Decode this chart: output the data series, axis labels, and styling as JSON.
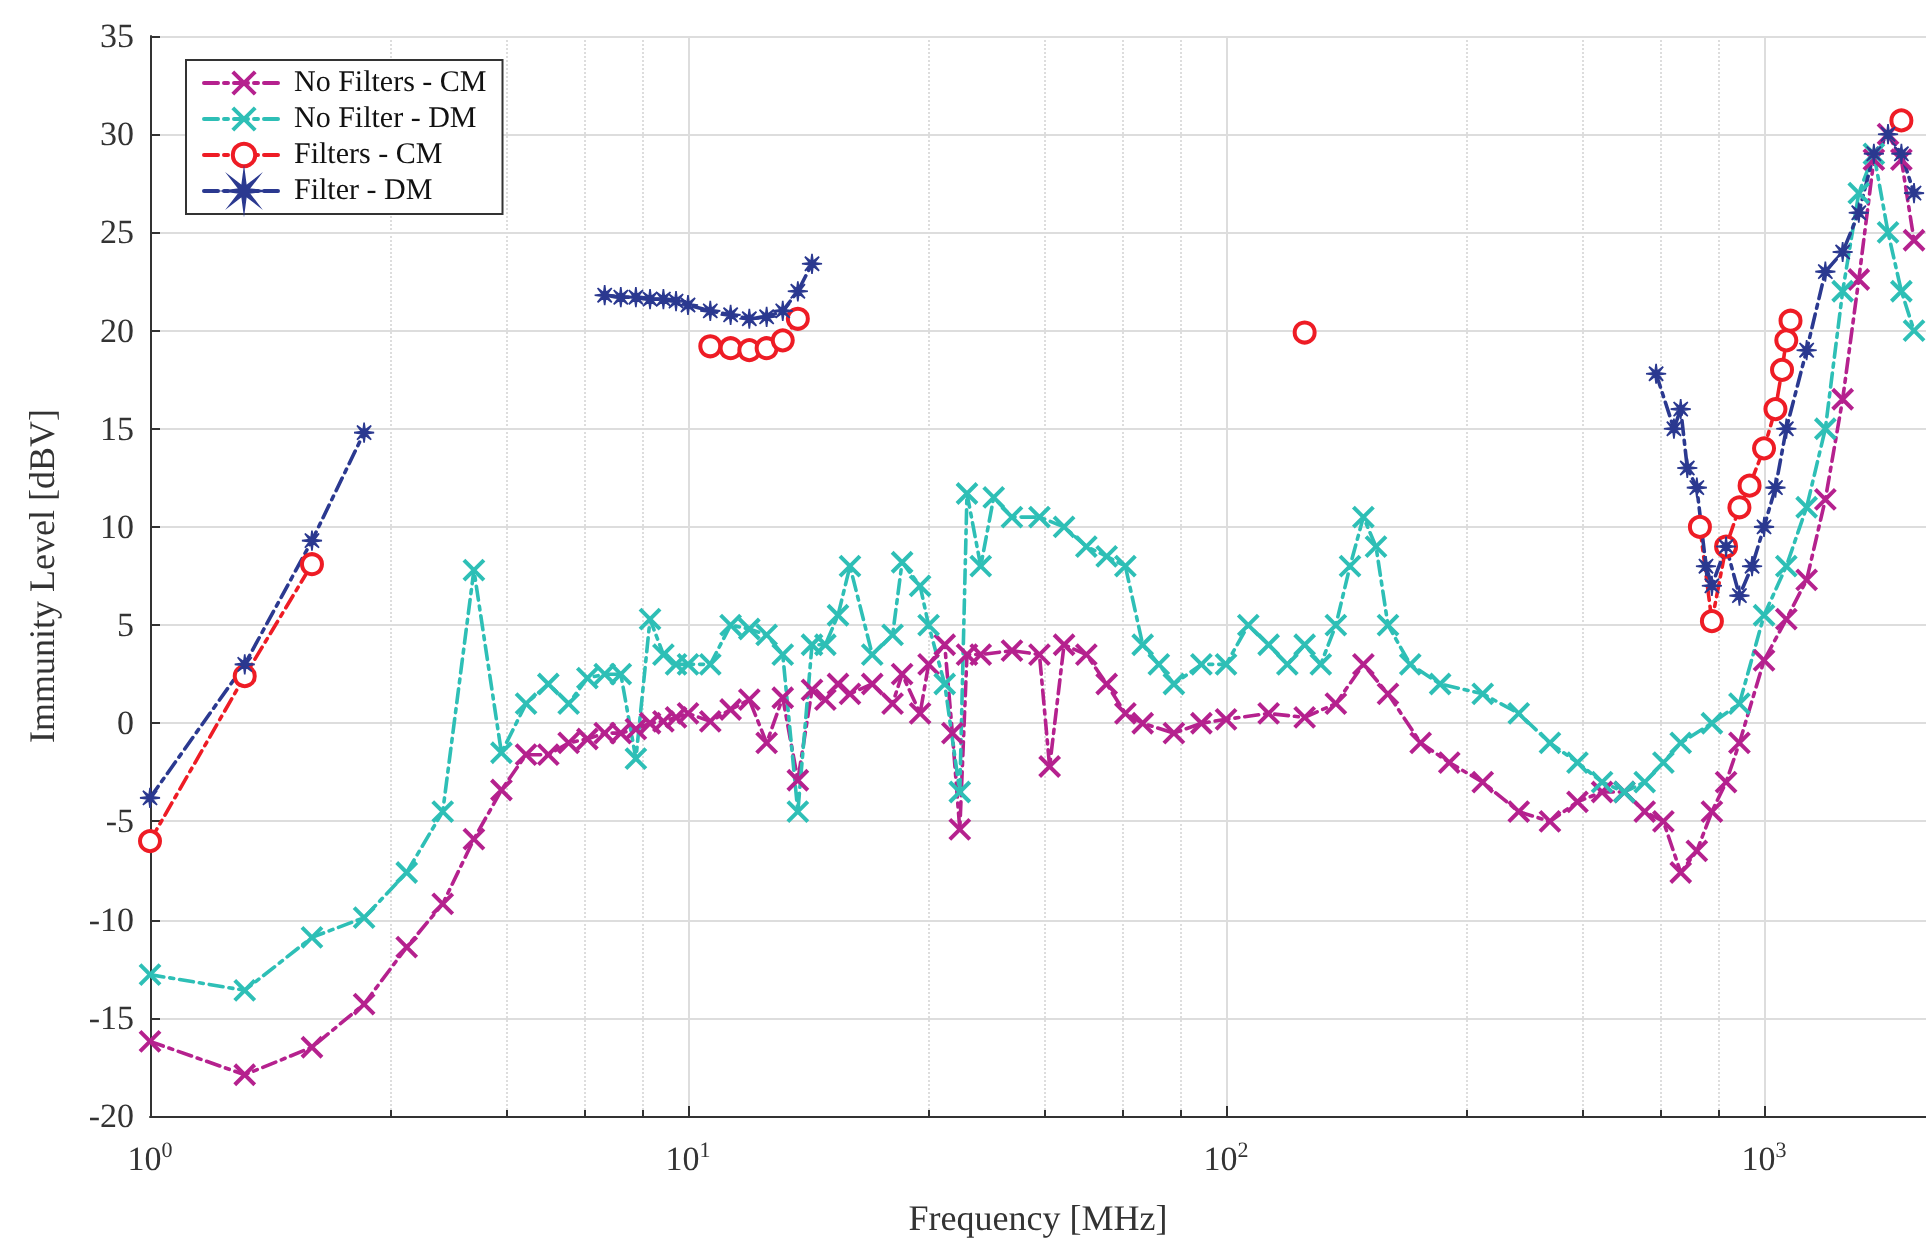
{
  "chart_data": {
    "type": "line",
    "xlabel": "Frequency [MHz]",
    "ylabel": "Immunity Level [dBV]",
    "log": "x",
    "xlim": [
      1,
      2000
    ],
    "xticks": [
      {
        "value": 1,
        "label": "10$^{0}$"
      },
      {
        "value": 10,
        "label": "10$^{1}$"
      },
      {
        "value": 100,
        "label": "10$^{2}$"
      },
      {
        "value": 1000,
        "label": "10$^{3}$"
      }
    ],
    "ylim": [
      -20,
      35
    ],
    "yticks": [
      -20,
      -15,
      -10,
      -5,
      0,
      5,
      10,
      15,
      20,
      25,
      30,
      35
    ],
    "grid": true,
    "legend": "top left",
    "line_style": "dashed",
    "series": [
      {
        "name": "No Filters - CM",
        "color": "#b5218e",
        "marker": "cross",
        "x": [
          1,
          1.5,
          2,
          2.5,
          3,
          3.5,
          4,
          4.5,
          5,
          5.5,
          6,
          6.5,
          7,
          7.5,
          8,
          8.5,
          9,
          9.5,
          10,
          11,
          12,
          13,
          14,
          15,
          16,
          17,
          18,
          19,
          20,
          22,
          24,
          25,
          27,
          28,
          30,
          31,
          32,
          33,
          35,
          40,
          45,
          47,
          50,
          55,
          60,
          65,
          70,
          80,
          90,
          100,
          120,
          140,
          160,
          180,
          200,
          230,
          260,
          300,
          350,
          400,
          450,
          500,
          550,
          600,
          650,
          700,
          750,
          800,
          850,
          900,
          1000,
          1100,
          1200,
          1300,
          1400,
          1500,
          1600,
          1700,
          1800,
          1900
        ],
        "values": [
          -16.2,
          -17.9,
          -16.5,
          -14.3,
          -11.4,
          -9.2,
          -5.9,
          -3.4,
          -1.6,
          -1.6,
          -1,
          -0.8,
          -0.5,
          -0.5,
          -0.3,
          0,
          0.1,
          0.3,
          0.5,
          0.1,
          0.7,
          1.2,
          -1,
          1.3,
          -2.9,
          1.7,
          1.2,
          2,
          1.5,
          2,
          1,
          2.5,
          0.5,
          3,
          4,
          -0.5,
          -5.4,
          3.5,
          3.5,
          3.7,
          3.5,
          -2.2,
          4,
          3.5,
          2,
          0.5,
          0,
          -0.5,
          0,
          0.2,
          0.5,
          0.3,
          1,
          3,
          1.5,
          -1,
          -2,
          -3,
          -4.5,
          -5,
          -4,
          -3.5,
          -3.5,
          -4.5,
          -5,
          -7.6,
          -6.5,
          -4.5,
          -3,
          -1,
          3.2,
          5.3,
          7.3,
          11.4,
          16.5,
          22.6,
          28.7,
          30,
          28.7,
          24.6
        ]
      },
      {
        "name": "No Filter - DM",
        "color": "#2ebfb6",
        "marker": "cross",
        "x": [
          1,
          1.5,
          2,
          2.5,
          3,
          3.5,
          4,
          4.5,
          5,
          5.5,
          6,
          6.5,
          7,
          7.5,
          8,
          8.5,
          9,
          9.5,
          10,
          11,
          12,
          13,
          14,
          15,
          16,
          17,
          18,
          19,
          20,
          22,
          24,
          25,
          27,
          28,
          30,
          32,
          33,
          35,
          37,
          40,
          45,
          50,
          55,
          60,
          65,
          70,
          75,
          80,
          90,
          100,
          110,
          120,
          130,
          140,
          150,
          160,
          170,
          180,
          190,
          200,
          220,
          250,
          300,
          350,
          400,
          450,
          500,
          550,
          600,
          650,
          700,
          800,
          900,
          1000,
          1100,
          1200,
          1300,
          1400,
          1500,
          1600,
          1700,
          1800,
          1900
        ],
        "values": [
          -12.8,
          -13.6,
          -10.9,
          -9.9,
          -7.6,
          -4.5,
          7.8,
          -1.5,
          1,
          2,
          1,
          2.3,
          2.5,
          2.5,
          -1.8,
          5.3,
          3.5,
          3,
          3,
          3,
          5,
          4.8,
          4.5,
          3.5,
          -4.5,
          4,
          4,
          5.5,
          8,
          3.5,
          4.5,
          8.2,
          7,
          5,
          2,
          -3.5,
          11.7,
          8,
          11.5,
          10.5,
          10.5,
          10,
          9,
          8.5,
          8,
          4,
          3,
          2,
          3,
          3,
          5,
          4,
          3,
          4,
          3,
          5,
          8,
          10.5,
          9,
          5,
          3,
          2,
          1.5,
          0.5,
          -1,
          -2,
          -3,
          -3.5,
          -3,
          -2,
          -1,
          0,
          1,
          5.5,
          8,
          11,
          15,
          22,
          27,
          29,
          25,
          22,
          20
        ]
      },
      {
        "name": "Filters - CM",
        "color": "#ee1c25",
        "marker": "circle",
        "x": [
          1,
          1.5,
          2,
          5,
          11,
          12,
          13,
          14,
          15,
          16,
          50,
          140,
          400,
          760,
          800,
          850,
          900,
          940,
          1000,
          1050,
          1080,
          1100,
          1120,
          1500,
          1800
        ],
        "values": [
          -6,
          2.4,
          8.1,
          null,
          19.2,
          19.1,
          19,
          19.1,
          19.5,
          20.6,
          null,
          19.9,
          null,
          10,
          5.2,
          9,
          11,
          12.1,
          14,
          16,
          18,
          19.5,
          20.5,
          null,
          30.7
        ]
      },
      {
        "name": "Filter - DM",
        "color": "#2b3990",
        "marker": "star",
        "x": [
          1,
          1.5,
          2,
          2.5,
          5,
          7,
          7.5,
          8,
          8.5,
          9,
          9.5,
          10,
          11,
          12,
          13,
          14,
          15,
          16,
          17,
          100,
          630,
          680,
          700,
          720,
          750,
          780,
          800,
          850,
          900,
          950,
          1000,
          1050,
          1100,
          1200,
          1300,
          1400,
          1500,
          1600,
          1700,
          1800,
          1900
        ],
        "values": [
          -3.8,
          3,
          9.3,
          14.8,
          null,
          21.8,
          21.7,
          21.7,
          21.6,
          21.6,
          21.5,
          21.3,
          21,
          20.8,
          20.6,
          20.7,
          21,
          22,
          23.4,
          null,
          17.8,
          15,
          16,
          13,
          12,
          8,
          7,
          9,
          6.5,
          8,
          10,
          12,
          15,
          19,
          23,
          24,
          26,
          29,
          30,
          29,
          27
        ]
      }
    ]
  }
}
